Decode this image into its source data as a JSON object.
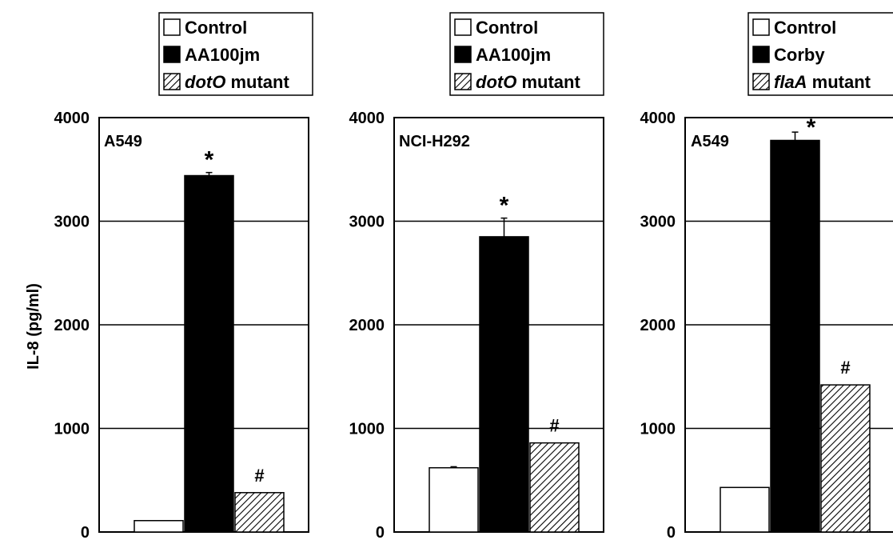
{
  "chart_data": [
    {
      "type": "bar",
      "panel_label": "A549",
      "categories": [
        "Control",
        "AA100jm",
        "dotO mutant"
      ],
      "values": [
        110,
        3440,
        380
      ],
      "errors": [
        0,
        30,
        0
      ],
      "annotations": [
        "",
        "*",
        "#"
      ],
      "ylabel": "IL-8 (pg/ml)",
      "ylim": [
        0,
        4000
      ],
      "yticks": [
        "0",
        "1000",
        "2000",
        "3000",
        "4000"
      ],
      "grid": true,
      "legend_position": "top",
      "legend": [
        {
          "name": "Control",
          "italic_part": "",
          "fill": "white"
        },
        {
          "name": "AA100jm",
          "italic_part": "",
          "fill": "black"
        },
        {
          "name": " mutant",
          "italic_part": "dotO",
          "fill": "hatched"
        }
      ]
    },
    {
      "type": "bar",
      "panel_label": "NCI-H292",
      "categories": [
        "Control",
        "AA100jm",
        "dotO mutant"
      ],
      "values": [
        620,
        2850,
        860
      ],
      "errors": [
        10,
        180,
        0
      ],
      "annotations": [
        "",
        "*",
        "#"
      ],
      "ylabel": "",
      "ylim": [
        0,
        4000
      ],
      "yticks": [
        "0",
        "1000",
        "2000",
        "3000",
        "4000"
      ],
      "grid": true,
      "legend_position": "top",
      "legend": [
        {
          "name": "Control",
          "italic_part": "",
          "fill": "white"
        },
        {
          "name": "AA100jm",
          "italic_part": "",
          "fill": "black"
        },
        {
          "name": " mutant",
          "italic_part": "dotO",
          "fill": "hatched"
        }
      ]
    },
    {
      "type": "bar",
      "panel_label": "A549",
      "categories": [
        "Control",
        "Corby",
        "flaA mutant"
      ],
      "values": [
        430,
        3780,
        1420
      ],
      "errors": [
        0,
        80,
        0
      ],
      "annotations": [
        "",
        "*",
        "#"
      ],
      "ylabel": "",
      "ylim": [
        0,
        4000
      ],
      "yticks": [
        "0",
        "1000",
        "2000",
        "3000",
        "4000"
      ],
      "grid": true,
      "legend_position": "top",
      "legend": [
        {
          "name": "Control",
          "italic_part": "",
          "fill": "white"
        },
        {
          "name": "Corby",
          "italic_part": "",
          "fill": "black"
        },
        {
          "name": " mutant",
          "italic_part": "flaA",
          "fill": "hatched"
        }
      ]
    }
  ],
  "colors": {
    "control_fill": "#ffffff",
    "treated_fill": "#000000",
    "mutant_hatch": "#000000",
    "axis": "#000000",
    "grid": "#000000"
  }
}
